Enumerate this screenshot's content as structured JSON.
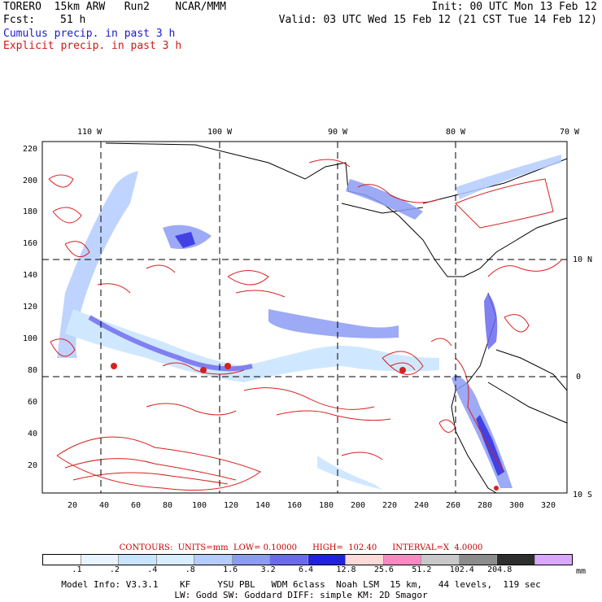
{
  "header": {
    "model": "TORERO  15km ARW   Run2    NCAR/MMM",
    "init": "Init: 00 UTC Mon 13 Feb 12",
    "fcst_label": "Fcst:",
    "fcst_value": "51 h",
    "valid": "Valid: 03 UTC Wed 15 Feb 12 (21 CST Tue 14 Feb 12)",
    "cumulus": "Cumulus precip. in past 3 h",
    "explicit": "Explicit precip. in past 3 h"
  },
  "map": {
    "lon_labels": [
      "110 W",
      "100 W",
      "90 W",
      "80 W",
      "70 W"
    ],
    "lat_labels_right": [
      "10 N",
      "0",
      "10 S"
    ],
    "y_ticks": [
      "220",
      "200",
      "180",
      "160",
      "140",
      "120",
      "100",
      "80",
      "60",
      "40",
      "20"
    ],
    "x_ticks": [
      "20",
      "40",
      "60",
      "80",
      "100",
      "120",
      "140",
      "160",
      "180",
      "200",
      "220",
      "240",
      "260",
      "280",
      "300",
      "320"
    ]
  },
  "contours_line": "CONTOURS:  UNITS=mm  LOW= 0.10000      HIGH=  102.40      INTERVAL=X  4.0000",
  "colorbar": {
    "colors": [
      "#ffffff",
      "#e8f4ff",
      "#c8e4ff",
      "#d8eeff",
      "#b4ccff",
      "#8c9cf4",
      "#6a6af0",
      "#2020e0",
      "#ffd8d8",
      "#ff88c0",
      "#c8c8c8",
      "#8c8c8c",
      "#2e2e2e",
      "#d8a8ff"
    ],
    "labels": [
      ".1",
      ".2",
      ".4",
      ".8",
      "1.6",
      "3.2",
      "6.4",
      "12.8",
      "25.6",
      "51.2",
      "102.4",
      "204.8"
    ],
    "unit": "mm"
  },
  "info": {
    "line1": "Model Info: V3.3.1    KF     YSU PBL   WDM 6class  Noah LSM  15 km,   44 levels,  119 sec",
    "line2": "LW: Godd SW: Goddard DIFF: simple KM: 2D Smagor"
  },
  "map_regions": [
    {
      "name": "itcz-blue-band",
      "level": "3.2"
    },
    {
      "name": "coastal-blue",
      "level": "6.4"
    }
  ]
}
